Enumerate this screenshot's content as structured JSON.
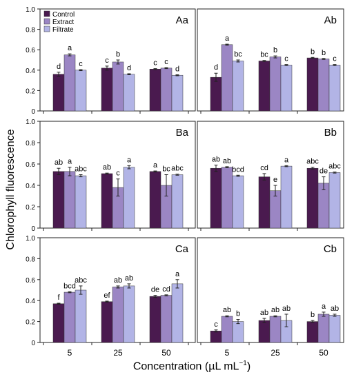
{
  "chart_data": {
    "type": "bar",
    "ylabel": "Chlorophyll fluorescence",
    "xlabel": {
      "main": "Concentration (µL mL",
      "sup": "−1",
      "close": ")"
    },
    "categories": [
      "5",
      "25",
      "50"
    ],
    "legend": {
      "placement": "top-left of panel Aa",
      "entries": [
        "Control",
        "Extract",
        "Filtrate"
      ]
    },
    "series_colors": [
      "#4a1a4f",
      "#9b86c4",
      "#b2b4e6"
    ],
    "ylim": [
      0,
      1.0
    ],
    "yticks": [
      "0",
      "0.2",
      "0.4",
      "0.6",
      "0.8",
      "1.0"
    ],
    "grid": false,
    "panels": [
      {
        "label": "Aa",
        "values": [
          [
            0.36,
            0.55,
            0.4
          ],
          [
            0.42,
            0.48,
            0.36
          ],
          [
            0.41,
            0.42,
            0.35
          ]
        ],
        "errors": [
          [
            0.02,
            0.01,
            0.005
          ],
          [
            0.02,
            0.02,
            0.005
          ],
          [
            0.005,
            0.005,
            0.005
          ]
        ],
        "letters": [
          [
            "d",
            "a",
            "c"
          ],
          [
            "c",
            "b",
            "d"
          ],
          [
            "c",
            "c",
            "d"
          ]
        ]
      },
      {
        "label": "Ab",
        "values": [
          [
            0.33,
            0.65,
            0.49
          ],
          [
            0.49,
            0.53,
            0.45
          ],
          [
            0.52,
            0.51,
            0.45
          ]
        ],
        "errors": [
          [
            0.04,
            0.005,
            0.01
          ],
          [
            0.005,
            0.01,
            0.005
          ],
          [
            0.005,
            0.005,
            0.005
          ]
        ],
        "letters": [
          [
            "d",
            "a",
            "bc"
          ],
          [
            "bc",
            "b",
            "c"
          ],
          [
            "b",
            "b",
            "c"
          ]
        ]
      },
      {
        "label": "Ba",
        "values": [
          [
            0.53,
            0.53,
            0.49
          ],
          [
            0.51,
            0.38,
            0.57
          ],
          [
            0.53,
            0.4,
            0.5
          ]
        ],
        "errors": [
          [
            0.03,
            0.04,
            0.01
          ],
          [
            0.005,
            0.08,
            0.015
          ],
          [
            0.005,
            0.1,
            0.005
          ]
        ],
        "letters": [
          [
            "ab",
            "a",
            "abc"
          ],
          [
            "ab",
            "c",
            "a"
          ],
          [
            "a",
            "bc",
            "abc"
          ]
        ]
      },
      {
        "label": "Bb",
        "values": [
          [
            0.56,
            0.57,
            0.49
          ],
          [
            0.48,
            0.35,
            0.58
          ],
          [
            0.56,
            0.42,
            0.52
          ]
        ],
        "errors": [
          [
            0.03,
            0.005,
            0.005
          ],
          [
            0.03,
            0.05,
            0.005
          ],
          [
            0.01,
            0.06,
            0.005
          ]
        ],
        "letters": [
          [
            "ab",
            "ab",
            "bcd"
          ],
          [
            "cd",
            "e",
            "a"
          ],
          [
            "abc",
            "de",
            "abc"
          ]
        ]
      },
      {
        "label": "Ca",
        "values": [
          [
            0.37,
            0.48,
            0.5
          ],
          [
            0.39,
            0.53,
            0.54
          ],
          [
            0.44,
            0.45,
            0.56
          ]
        ],
        "errors": [
          [
            0.005,
            0.005,
            0.04
          ],
          [
            0.005,
            0.01,
            0.02
          ],
          [
            0.01,
            0.005,
            0.04
          ]
        ],
        "letters": [
          [
            "f",
            "bcd",
            "abc"
          ],
          [
            "ef",
            "ab",
            "ab"
          ],
          [
            "de",
            "cd",
            "a"
          ]
        ]
      },
      {
        "label": "Cb",
        "values": [
          [
            0.11,
            0.25,
            0.2
          ],
          [
            0.21,
            0.25,
            0.21
          ],
          [
            0.2,
            0.27,
            0.26
          ]
        ],
        "errors": [
          [
            0.01,
            0.005,
            0.02
          ],
          [
            0.02,
            0.005,
            0.06
          ],
          [
            0.01,
            0.02,
            0.01
          ]
        ],
        "letters": [
          [
            "c",
            "ab",
            "b"
          ],
          [
            "ab",
            "ab",
            "ab"
          ],
          [
            "b",
            "a",
            "ab"
          ]
        ]
      }
    ]
  }
}
